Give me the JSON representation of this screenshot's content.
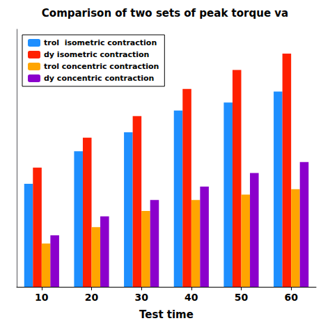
{
  "chart_data": {
    "type": "bar",
    "title": "Comparison of two sets of peak torque va",
    "xlabel": "Test time",
    "categories": [
      10,
      20,
      30,
      40,
      50,
      60
    ],
    "series": [
      {
        "name": "trol  isometric contraction",
        "color": "#1E8FFF",
        "values": [
          38,
          50,
          57,
          65,
          68,
          72
        ]
      },
      {
        "name": "dy isometric contraction",
        "color": "#FF2000",
        "values": [
          44,
          55,
          63,
          73,
          80,
          86
        ]
      },
      {
        "name": "trol concentric contraction",
        "color": "#FFA500",
        "values": [
          16,
          22,
          28,
          32,
          34,
          36
        ]
      },
      {
        "name": "dy concentric contraction",
        "color": "#8B00CC",
        "values": [
          19,
          26,
          32,
          37,
          42,
          46
        ]
      }
    ],
    "ylim": [
      0,
      95
    ],
    "grid": false,
    "legend": "upper left",
    "tick_labels": "x"
  }
}
